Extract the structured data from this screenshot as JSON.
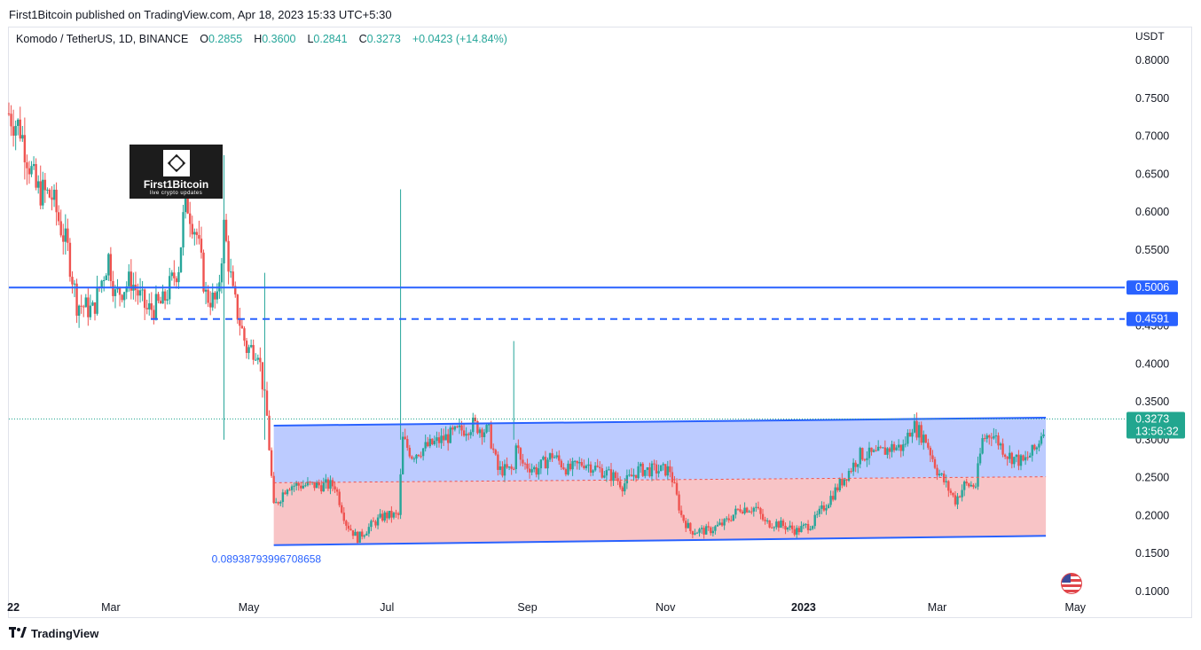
{
  "header": {
    "publish_line": "First1Bitcoin published on TradingView.com, Apr 18, 2023 15:33 UTC+5:30"
  },
  "legend": {
    "symbol": "Komodo / TetherUS, 1D, BINANCE",
    "o_label": "O",
    "o_value": "0.2855",
    "h_label": "H",
    "h_value": "0.3600",
    "l_label": "L",
    "l_value": "0.2841",
    "c_label": "C",
    "c_value": "0.3273",
    "change": "+0.0423 (+14.84%)"
  },
  "watermark": {
    "title": "First1Bitcoin",
    "subtitle": "live crypto updates",
    "icon": "diamond-logo-icon"
  },
  "footer": {
    "brand": "TradingView",
    "icon": "tradingview-logo-icon"
  },
  "colors": {
    "up": "#26a69a",
    "down": "#ef5350",
    "line_blue": "#2962ff",
    "channel_upper_fill": "#bccbff",
    "channel_lower_fill": "#f8c4c6",
    "mid_dashed": "#ef5350",
    "price_tag": "#22a68f"
  },
  "chart_data": {
    "type": "candlestick",
    "title": "Komodo / TetherUS, 1D, BINANCE",
    "y_unit": "USDT",
    "y_ticks": [
      "0.8000",
      "0.7500",
      "0.7000",
      "0.6500",
      "0.6000",
      "0.5500",
      "0.5006",
      "0.4591",
      "0.4000",
      "0.3500",
      "0.2500",
      "0.2000",
      "0.1500",
      "0.1000"
    ],
    "ylim": [
      0.1,
      0.8
    ],
    "x_ticks": [
      "22",
      "Mar",
      "May",
      "Jul",
      "Sep",
      "Nov",
      "2023",
      "Mar",
      "May"
    ],
    "x_range": [
      "2022-01-15",
      "2023-05-15"
    ],
    "grid": false,
    "horizontal_levels": [
      {
        "value": 0.5006,
        "style": "solid",
        "label": "0.5006"
      },
      {
        "value": 0.4591,
        "style": "dashed",
        "label": "0.4591"
      }
    ],
    "current_price": {
      "value": 0.3273,
      "label": "0.3273",
      "countdown": "13:56:32"
    },
    "channel": {
      "start": "2022-05-12",
      "end": "2023-04-18",
      "upper": [
        0.3186,
        0.3291
      ],
      "lower": [
        0.1611,
        0.1733
      ],
      "mid": [
        0.2433,
        0.2512
      ],
      "annotation": "0.08938793996708658"
    },
    "key_points": [
      {
        "date": "2022-01-15",
        "close": 0.73
      },
      {
        "date": "2022-01-20",
        "close": 0.71
      },
      {
        "date": "2022-01-27",
        "close": 0.63
      },
      {
        "date": "2022-02-03",
        "close": 0.62
      },
      {
        "date": "2022-02-10",
        "close": 0.55
      },
      {
        "date": "2022-02-14",
        "close": 0.48
      },
      {
        "date": "2022-02-21",
        "close": 0.47
      },
      {
        "date": "2022-02-28",
        "close": 0.54
      },
      {
        "date": "2022-03-03",
        "close": 0.49
      },
      {
        "date": "2022-03-10",
        "close": 0.51
      },
      {
        "date": "2022-03-17",
        "close": 0.47
      },
      {
        "date": "2022-03-24",
        "close": 0.48
      },
      {
        "date": "2022-03-31",
        "close": 0.53
      },
      {
        "date": "2022-04-03",
        "close": 0.62
      },
      {
        "date": "2022-04-08",
        "close": 0.57
      },
      {
        "date": "2022-04-12",
        "close": 0.49
      },
      {
        "date": "2022-04-17",
        "close": 0.48
      },
      {
        "date": "2022-04-20",
        "close": 0.58
      },
      {
        "date": "2022-04-24",
        "close": 0.49
      },
      {
        "date": "2022-04-30",
        "close": 0.42
      },
      {
        "date": "2022-05-05",
        "close": 0.42
      },
      {
        "date": "2022-05-09",
        "close": 0.33
      },
      {
        "date": "2022-05-12",
        "close": 0.21
      },
      {
        "date": "2022-05-18",
        "close": 0.24
      },
      {
        "date": "2022-05-25",
        "close": 0.24
      },
      {
        "date": "2022-06-01",
        "close": 0.24
      },
      {
        "date": "2022-06-08",
        "close": 0.24
      },
      {
        "date": "2022-06-13",
        "close": 0.19
      },
      {
        "date": "2022-06-18",
        "close": 0.17
      },
      {
        "date": "2022-06-25",
        "close": 0.19
      },
      {
        "date": "2022-06-30",
        "close": 0.2
      },
      {
        "date": "2022-07-06",
        "close": 0.2
      },
      {
        "date": "2022-07-08",
        "close": 0.3
      },
      {
        "date": "2022-07-12",
        "close": 0.28
      },
      {
        "date": "2022-07-18",
        "close": 0.29
      },
      {
        "date": "2022-07-25",
        "close": 0.3
      },
      {
        "date": "2022-08-01",
        "close": 0.31
      },
      {
        "date": "2022-08-08",
        "close": 0.32
      },
      {
        "date": "2022-08-15",
        "close": 0.31
      },
      {
        "date": "2022-08-19",
        "close": 0.26
      },
      {
        "date": "2022-08-26",
        "close": 0.26
      },
      {
        "date": "2022-08-27",
        "close": 0.3
      },
      {
        "date": "2022-08-29",
        "close": 0.27
      },
      {
        "date": "2022-09-05",
        "close": 0.26
      },
      {
        "date": "2022-09-12",
        "close": 0.28
      },
      {
        "date": "2022-09-19",
        "close": 0.26
      },
      {
        "date": "2022-09-26",
        "close": 0.27
      },
      {
        "date": "2022-10-03",
        "close": 0.26
      },
      {
        "date": "2022-10-10",
        "close": 0.25
      },
      {
        "date": "2022-10-13",
        "close": 0.24
      },
      {
        "date": "2022-10-20",
        "close": 0.26
      },
      {
        "date": "2022-10-27",
        "close": 0.26
      },
      {
        "date": "2022-11-03",
        "close": 0.26
      },
      {
        "date": "2022-11-08",
        "close": 0.2
      },
      {
        "date": "2022-11-12",
        "close": 0.18
      },
      {
        "date": "2022-11-20",
        "close": 0.18
      },
      {
        "date": "2022-11-27",
        "close": 0.19
      },
      {
        "date": "2022-12-04",
        "close": 0.21
      },
      {
        "date": "2022-12-11",
        "close": 0.21
      },
      {
        "date": "2022-12-15",
        "close": 0.19
      },
      {
        "date": "2022-12-20",
        "close": 0.19
      },
      {
        "date": "2022-12-29",
        "close": 0.18
      },
      {
        "date": "2023-01-05",
        "close": 0.19
      },
      {
        "date": "2023-01-12",
        "close": 0.22
      },
      {
        "date": "2023-01-19",
        "close": 0.25
      },
      {
        "date": "2023-01-26",
        "close": 0.28
      },
      {
        "date": "2023-02-02",
        "close": 0.28
      },
      {
        "date": "2023-02-09",
        "close": 0.29
      },
      {
        "date": "2023-02-14",
        "close": 0.29
      },
      {
        "date": "2023-02-18",
        "close": 0.32
      },
      {
        "date": "2023-02-24",
        "close": 0.3
      },
      {
        "date": "2023-03-01",
        "close": 0.26
      },
      {
        "date": "2023-03-09",
        "close": 0.22
      },
      {
        "date": "2023-03-13",
        "close": 0.24
      },
      {
        "date": "2023-03-18",
        "close": 0.24
      },
      {
        "date": "2023-03-21",
        "close": 0.3
      },
      {
        "date": "2023-03-25",
        "close": 0.31
      },
      {
        "date": "2023-04-01",
        "close": 0.28
      },
      {
        "date": "2023-04-08",
        "close": 0.27
      },
      {
        "date": "2023-04-14",
        "close": 0.29
      },
      {
        "date": "2023-04-18",
        "close": 0.3273
      }
    ],
    "spikes": [
      {
        "date": "2022-07-07",
        "high": 0.63
      },
      {
        "date": "2022-08-26",
        "high": 0.43
      },
      {
        "date": "2022-05-08",
        "high": 0.52
      },
      {
        "date": "2022-04-20",
        "high": 0.675
      }
    ]
  }
}
